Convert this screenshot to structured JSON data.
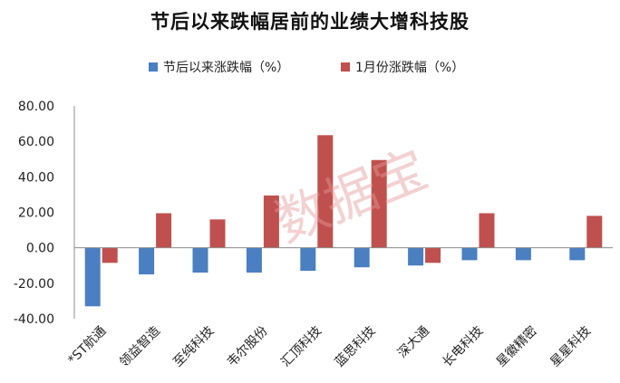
{
  "chart_data": {
    "type": "bar",
    "title": "节后以来跌幅居前的业绩大增科技股",
    "categories": [
      "*ST航通",
      "领益智造",
      "至纯科技",
      "韦尔股份",
      "汇顶科技",
      "蓝思科技",
      "深大通",
      "长电科技",
      "星徽精密",
      "星星科技"
    ],
    "series": [
      {
        "name": "节后以来涨跌幅（%）",
        "color": "#4a7fc1",
        "values": [
          -33,
          -15,
          -14,
          -14,
          -13,
          -11,
          -10,
          -7,
          -7,
          -7
        ]
      },
      {
        "name": "1月份涨跌幅（%）",
        "color": "#c0504d",
        "values": [
          -8.5,
          19.5,
          16,
          29.5,
          63.5,
          49.5,
          -8.5,
          19.5,
          null,
          18
        ]
      }
    ],
    "yticks": [
      "80.00",
      "60.00",
      "40.00",
      "20.00",
      "0.00",
      "-20.00",
      "-40.00"
    ],
    "ylim": [
      -40,
      80
    ],
    "grid": false,
    "legend_position": "top"
  },
  "watermark": "数据宝"
}
